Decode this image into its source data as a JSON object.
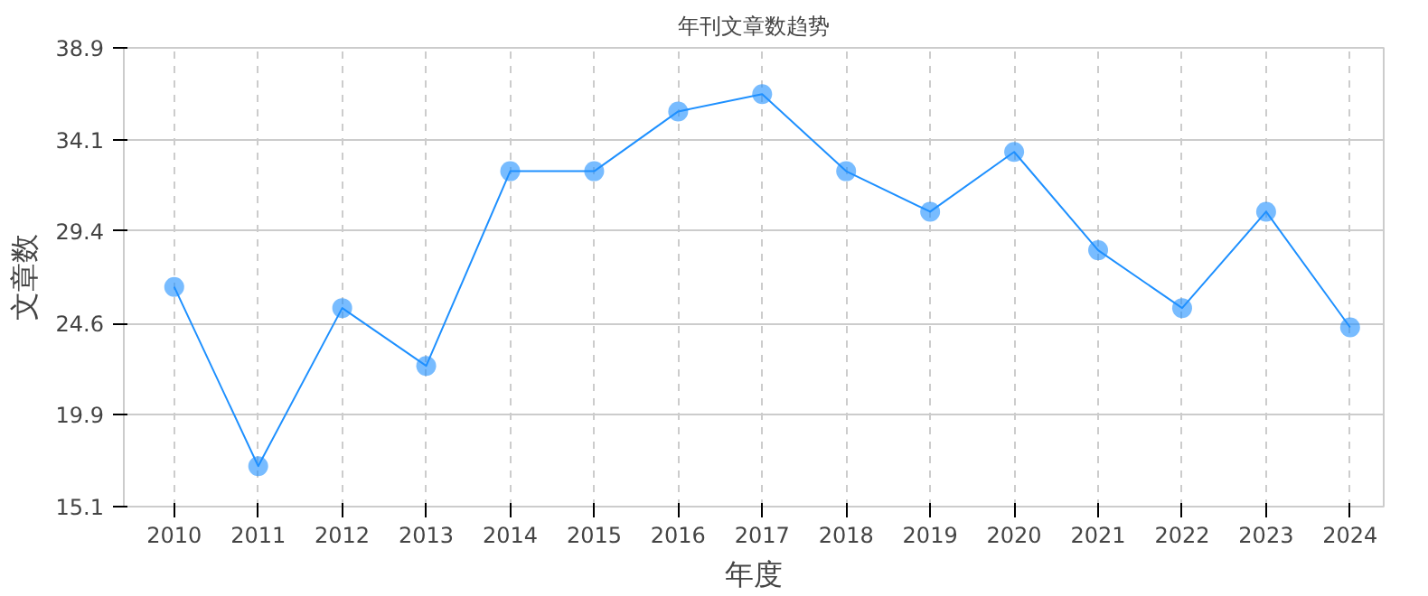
{
  "chart_data": {
    "type": "line",
    "title": "年刊文章数趋势",
    "xlabel": "年度",
    "ylabel": "文章数",
    "categories": [
      "2010",
      "2011",
      "2012",
      "2013",
      "2014",
      "2015",
      "2016",
      "2017",
      "2018",
      "2019",
      "2020",
      "2021",
      "2022",
      "2023",
      "2024"
    ],
    "series": [
      {
        "color": "#1e90ff",
        "values": [
          26.5,
          17.2,
          25.4,
          22.4,
          32.5,
          32.5,
          35.6,
          36.5,
          32.5,
          30.4,
          33.5,
          28.4,
          25.4,
          30.4,
          24.4
        ]
      }
    ],
    "ylim": [
      15.1,
      38.9
    ],
    "yticks": [
      15.1,
      19.9,
      24.6,
      29.4,
      34.1,
      38.9
    ],
    "grid": true,
    "marker": "circle",
    "line_style": "solid"
  }
}
